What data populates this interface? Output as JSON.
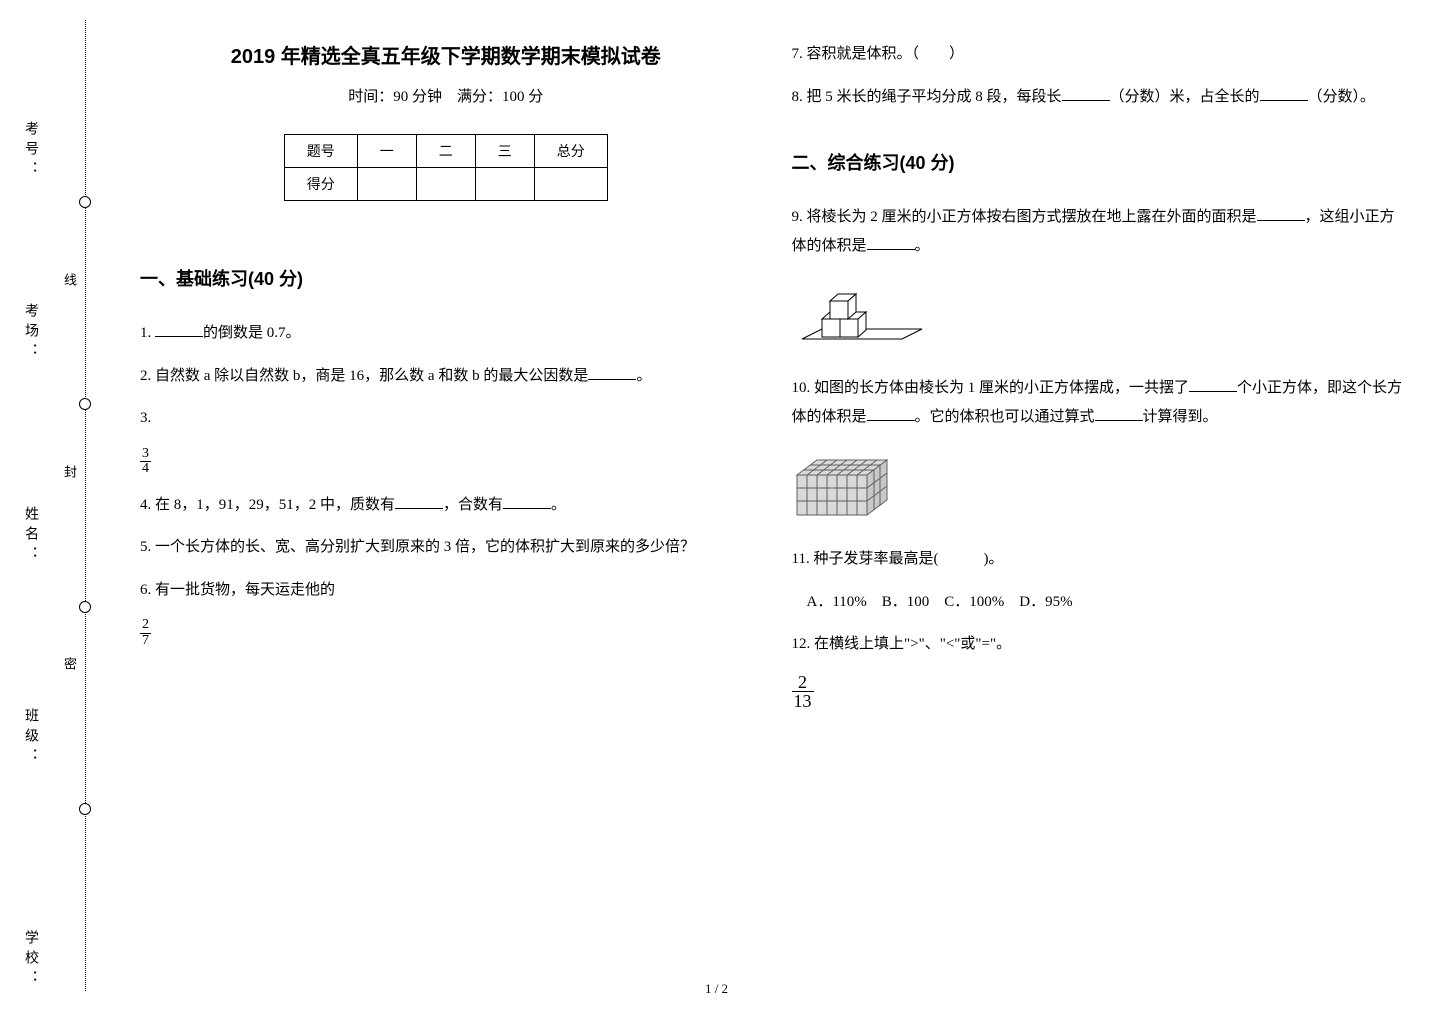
{
  "binding": {
    "labels": [
      "学校：",
      "班级：",
      "姓名：",
      "考场：",
      "考号："
    ],
    "inner_labels": [
      "密",
      "封",
      "线"
    ],
    "circle_positions_pct": [
      20,
      40,
      60,
      80
    ],
    "label_positions_pct": [
      92,
      70,
      50,
      30,
      12
    ],
    "inner_label_positions_pct": [
      65,
      46,
      27
    ]
  },
  "header": {
    "title": "2019 年精选全真五年级下学期数学期末模拟试卷",
    "subtitle": "时间：90 分钟　满分：100 分"
  },
  "score_table": {
    "row1": [
      "题号",
      "一",
      "二",
      "三",
      "总分"
    ],
    "row2_label": "得分"
  },
  "sections": {
    "s1": "一、基础练习(40 分)",
    "s2": "二、综合练习(40 分)"
  },
  "questions": {
    "q1_a": "1. ",
    "q1_b": "的倒数是 0.7。",
    "q2_a": "2. 自然数 a 除以自然数 b，商是 16，那么数 a 和数 b 的最大公因数是",
    "q2_b": "。",
    "q3": "3.",
    "q3_frac_num": "3",
    "q3_frac_den": "4",
    "q4_a": "4. 在 8，1，91，29，51，2 中，质数有",
    "q4_b": "，合数有",
    "q4_c": "。",
    "q5": "5. 一个长方体的长、宽、高分别扩大到原来的 3 倍，它的体积扩大到原来的多少倍？",
    "q6": "6. 有一批货物，每天运走他的",
    "q6_frac_num": "2",
    "q6_frac_den": "7",
    "q7": "7. 容积就是体积。（　　）",
    "q8_a": "8. 把 5 米长的绳子平均分成 8 段，每段长",
    "q8_b": "（分数）米，占全长的",
    "q8_c": "（分数）。",
    "q9_a": "9. 将棱长为 2 厘米的小正方体按右图方式摆放在地上露在外面的面积是",
    "q9_b": "，这组小正方体的体积是",
    "q9_c": "。",
    "q10_a": "10. 如图的长方体由棱长为 1 厘米的小正方体摆成，一共摆了",
    "q10_b": "个小正方体，即这个长方体的体积是",
    "q10_c": "。它的体积也可以通过算式",
    "q10_d": "计算得到。",
    "q11": "11. 种子发芽率最高是(　　　)。",
    "q11_opts": "　A．110%　B．100　C．100%　D．95%",
    "q12": "12. 在横线上填上\">\"、\"<\"或\"=\"。",
    "q12_frac_num": "2",
    "q12_frac_den": "13"
  },
  "footer": "1 / 2",
  "figures": {
    "cubes_stroke": "#000000",
    "cubes_fill": "#ffffff",
    "cuboid_fill": "#d9d9d9"
  }
}
